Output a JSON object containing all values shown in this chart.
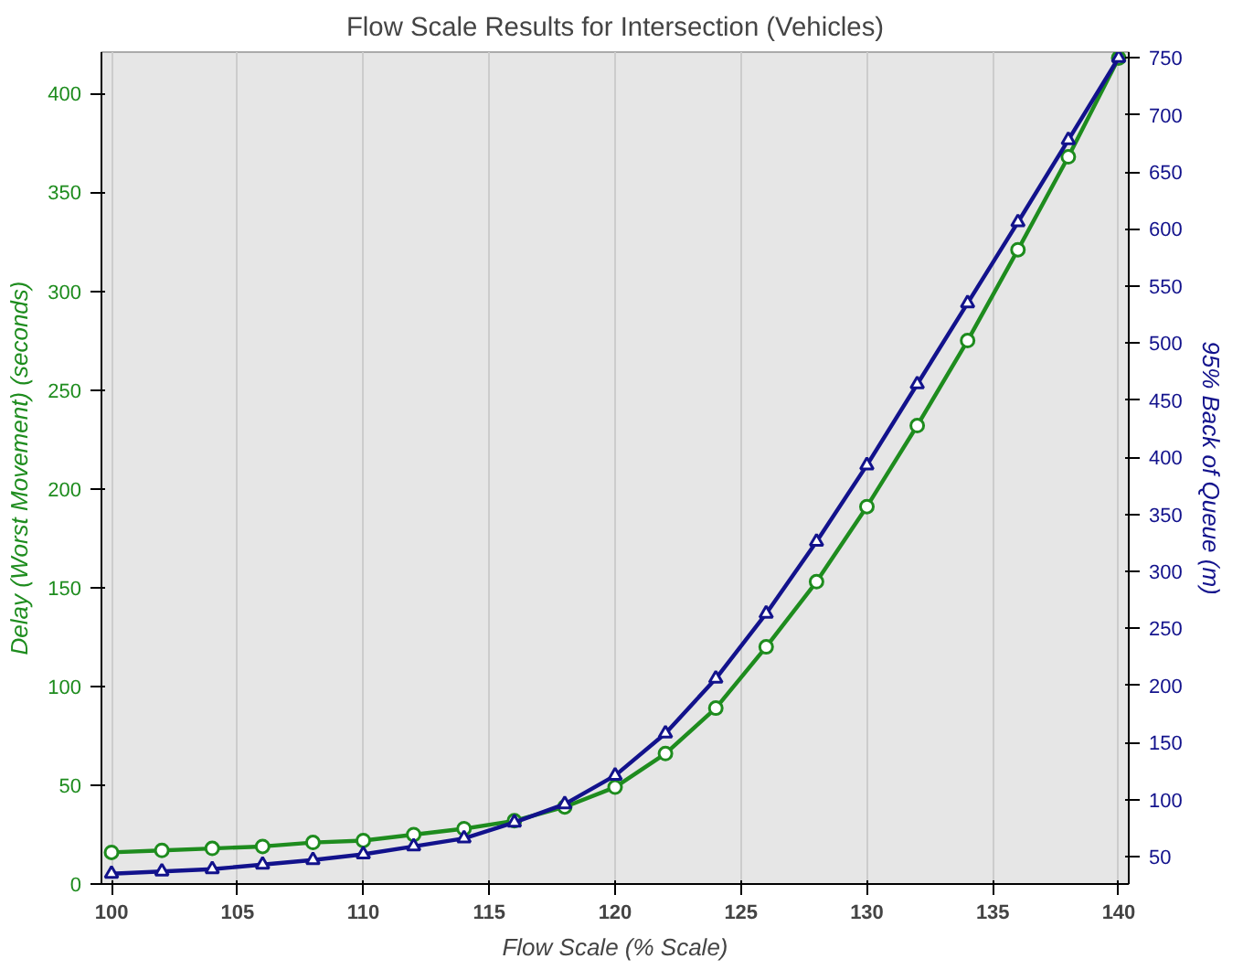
{
  "chart_data": {
    "type": "line",
    "title": "Flow Scale Results for Intersection (Vehicles)",
    "xlabel": "Flow Scale (% Scale)",
    "ylabel": "Delay (Worst Movement) (seconds)",
    "y2label": "95% Back of Queue (m)",
    "x": [
      100,
      102,
      104,
      106,
      108,
      110,
      112,
      114,
      116,
      118,
      120,
      122,
      124,
      126,
      128,
      130,
      132,
      134,
      136,
      138,
      140
    ],
    "series": [
      {
        "color": "#1e8c1e",
        "marker": "circle",
        "values": [
          16,
          17,
          18,
          19,
          21,
          22,
          25,
          28,
          32,
          39,
          49,
          66,
          89,
          120,
          153,
          191,
          232,
          275,
          321,
          368,
          418
        ]
      },
      {
        "color": "#12128c",
        "marker": "triangle",
        "axis": "y2",
        "values": [
          35,
          37,
          39,
          43,
          47,
          52,
          59,
          66,
          80,
          96,
          121,
          158,
          206,
          263,
          326,
          393,
          464,
          535,
          606,
          678,
          750
        ]
      }
    ],
    "xlim": [
      99.6,
      140.4
    ],
    "xticks": [
      100,
      105,
      110,
      115,
      120,
      125,
      130,
      135,
      140
    ],
    "ylim": [
      0,
      421
    ],
    "yticks": [
      0,
      50,
      100,
      150,
      200,
      250,
      300,
      350,
      400
    ],
    "y2lim": [
      26,
      755
    ],
    "y2ticks": [
      50,
      100,
      150,
      200,
      250,
      300,
      350,
      400,
      450,
      500,
      550,
      600,
      650,
      700,
      750
    ],
    "grid": "x",
    "line_style": "solid"
  }
}
